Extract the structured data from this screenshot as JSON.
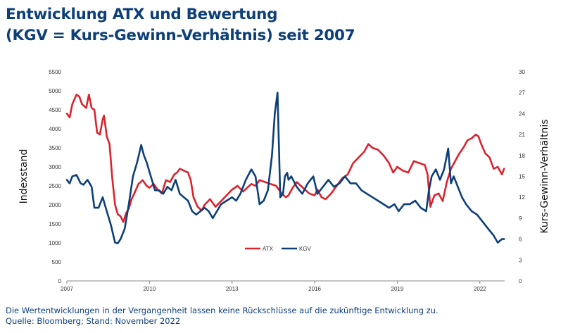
{
  "title_line1": "Entwicklung ATX und Bewertung",
  "title_line2": "(KGV = Kurs-Gewinn-Verhältnis) seit 2007",
  "footer_line1": "Die Wertentwicklungen in der Vergangenheit lassen keine Rückschlüsse auf die zukünftige Entwicklung zu.",
  "footer_line2": "Quelle: Bloomberg; Stand: November 2022",
  "colors": {
    "title": "#0d3f78",
    "atx": "#d9232e",
    "kgv": "#0d3f78"
  },
  "chart_data": {
    "type": "line",
    "ylabel": "Indexstand",
    "y2label": "Kurs-Gewinn-Verhältnis",
    "ylim": [
      0,
      5500
    ],
    "y2lim": [
      0,
      30
    ],
    "xlim": [
      2007,
      2022.9
    ],
    "xticks": [
      2007,
      2010,
      2013,
      2016,
      2019,
      2022
    ],
    "yticks": [
      0,
      500,
      1000,
      1500,
      2000,
      2500,
      3000,
      3500,
      4000,
      4500,
      5000,
      5500
    ],
    "y2ticks": [
      0,
      3,
      6,
      9,
      12,
      15,
      18,
      21,
      24,
      27,
      30
    ],
    "grid": false,
    "legend_position": "bottom-center",
    "series": [
      {
        "name": "ATX",
        "axis": "left",
        "color": "#d9232e",
        "x": [
          2007.0,
          2007.1,
          2007.2,
          2007.35,
          2007.45,
          2007.55,
          2007.7,
          2007.8,
          2007.9,
          2008.0,
          2008.1,
          2008.2,
          2008.3,
          2008.35,
          2008.45,
          2008.55,
          2008.65,
          2008.75,
          2008.85,
          2008.95,
          2009.05,
          2009.15,
          2009.25,
          2009.35,
          2009.45,
          2009.6,
          2009.75,
          2009.9,
          2010.0,
          2010.15,
          2010.3,
          2010.45,
          2010.6,
          2010.75,
          2010.9,
          2011.0,
          2011.1,
          2011.25,
          2011.4,
          2011.5,
          2011.6,
          2011.75,
          2011.9,
          2012.0,
          2012.2,
          2012.4,
          2012.6,
          2012.8,
          2013.0,
          2013.2,
          2013.4,
          2013.55,
          2013.7,
          2013.85,
          2014.0,
          2014.2,
          2014.4,
          2014.6,
          2014.8,
          2014.95,
          2015.05,
          2015.2,
          2015.35,
          2015.5,
          2015.65,
          2015.8,
          2016.0,
          2016.1,
          2016.25,
          2016.4,
          2016.6,
          2016.8,
          2017.0,
          2017.2,
          2017.4,
          2017.6,
          2017.8,
          2017.95,
          2018.1,
          2018.3,
          2018.5,
          2018.7,
          2018.85,
          2019.0,
          2019.2,
          2019.4,
          2019.6,
          2019.8,
          2020.0,
          2020.1,
          2020.2,
          2020.35,
          2020.5,
          2020.65,
          2020.8,
          2020.95,
          2021.1,
          2021.25,
          2021.4,
          2021.55,
          2021.7,
          2021.85,
          2021.95,
          2022.05,
          2022.2,
          2022.35,
          2022.5,
          2022.65,
          2022.8,
          2022.88
        ],
        "values": [
          4400,
          4300,
          4650,
          4900,
          4850,
          4650,
          4550,
          4900,
          4550,
          4500,
          3900,
          3850,
          4250,
          4350,
          3800,
          3600,
          2700,
          2000,
          1750,
          1700,
          1550,
          1780,
          1900,
          2150,
          2300,
          2550,
          2650,
          2500,
          2450,
          2550,
          2400,
          2300,
          2650,
          2600,
          2800,
          2850,
          2950,
          2900,
          2850,
          2650,
          2200,
          1950,
          1850,
          2000,
          2150,
          1950,
          2100,
          2250,
          2400,
          2500,
          2350,
          2450,
          2550,
          2500,
          2650,
          2600,
          2550,
          2500,
          2300,
          2200,
          2250,
          2450,
          2600,
          2500,
          2400,
          2300,
          2250,
          2400,
          2200,
          2150,
          2300,
          2500,
          2700,
          2800,
          3100,
          3250,
          3400,
          3600,
          3500,
          3450,
          3300,
          3100,
          2850,
          3000,
          2900,
          2850,
          3150,
          3100,
          3050,
          2800,
          1950,
          2250,
          2300,
          2100,
          2600,
          2950,
          3150,
          3350,
          3500,
          3700,
          3750,
          3850,
          3800,
          3600,
          3350,
          3250,
          2950,
          3000,
          2800,
          2950
        ]
      },
      {
        "name": "KGV",
        "axis": "right",
        "color": "#0d3f78",
        "x": [
          2007.0,
          2007.1,
          2007.2,
          2007.35,
          2007.5,
          2007.6,
          2007.75,
          2007.9,
          2008.0,
          2008.15,
          2008.3,
          2008.45,
          2008.6,
          2008.75,
          2008.85,
          2008.95,
          2009.1,
          2009.25,
          2009.4,
          2009.55,
          2009.7,
          2009.8,
          2009.9,
          2010.05,
          2010.2,
          2010.35,
          2010.5,
          2010.65,
          2010.8,
          2010.95,
          2011.1,
          2011.25,
          2011.4,
          2011.55,
          2011.7,
          2011.85,
          2012.0,
          2012.15,
          2012.3,
          2012.45,
          2012.6,
          2012.8,
          2013.0,
          2013.15,
          2013.3,
          2013.5,
          2013.7,
          2013.85,
          2014.0,
          2014.15,
          2014.3,
          2014.45,
          2014.55,
          2014.65,
          2014.75,
          2014.85,
          2014.92,
          2015.0,
          2015.05,
          2015.15,
          2015.35,
          2015.55,
          2015.75,
          2015.95,
          2016.1,
          2016.3,
          2016.5,
          2016.7,
          2016.9,
          2017.1,
          2017.3,
          2017.5,
          2017.7,
          2017.9,
          2018.1,
          2018.3,
          2018.5,
          2018.7,
          2018.9,
          2019.05,
          2019.25,
          2019.45,
          2019.65,
          2019.85,
          2020.05,
          2020.15,
          2020.25,
          2020.4,
          2020.55,
          2020.7,
          2020.85,
          2020.95,
          2021.05,
          2021.2,
          2021.35,
          2021.5,
          2021.7,
          2021.9,
          2022.1,
          2022.3,
          2022.5,
          2022.65,
          2022.8,
          2022.88
        ],
        "values": [
          14.5,
          14.0,
          15.0,
          15.2,
          14.0,
          13.8,
          14.5,
          13.5,
          10.5,
          10.5,
          12.0,
          10.0,
          8.0,
          5.5,
          5.4,
          6.0,
          7.5,
          11.0,
          15.0,
          17.0,
          19.5,
          18.0,
          17.0,
          15.0,
          13.0,
          13.0,
          12.5,
          13.5,
          13.0,
          14.5,
          12.5,
          12.0,
          11.5,
          10.0,
          9.5,
          10.0,
          10.5,
          10.0,
          9.0,
          10.0,
          11.0,
          11.5,
          12.0,
          11.5,
          12.5,
          14.5,
          16.0,
          15.0,
          11.0,
          11.5,
          13.0,
          18.0,
          24.0,
          27.0,
          12.0,
          12.5,
          15.0,
          15.5,
          14.5,
          15.0,
          13.5,
          12.5,
          14.0,
          15.0,
          12.5,
          13.5,
          14.5,
          13.5,
          14.0,
          15.0,
          14.0,
          14.0,
          13.0,
          12.5,
          12.0,
          11.5,
          11.0,
          10.5,
          11.0,
          10.0,
          11.0,
          11.0,
          11.5,
          10.5,
          10.0,
          13.0,
          15.0,
          16.0,
          14.5,
          16.0,
          19.0,
          14.0,
          15.0,
          13.5,
          12.0,
          11.0,
          10.0,
          9.5,
          8.5,
          7.5,
          6.5,
          5.5,
          6.0,
          6.0
        ]
      }
    ]
  }
}
